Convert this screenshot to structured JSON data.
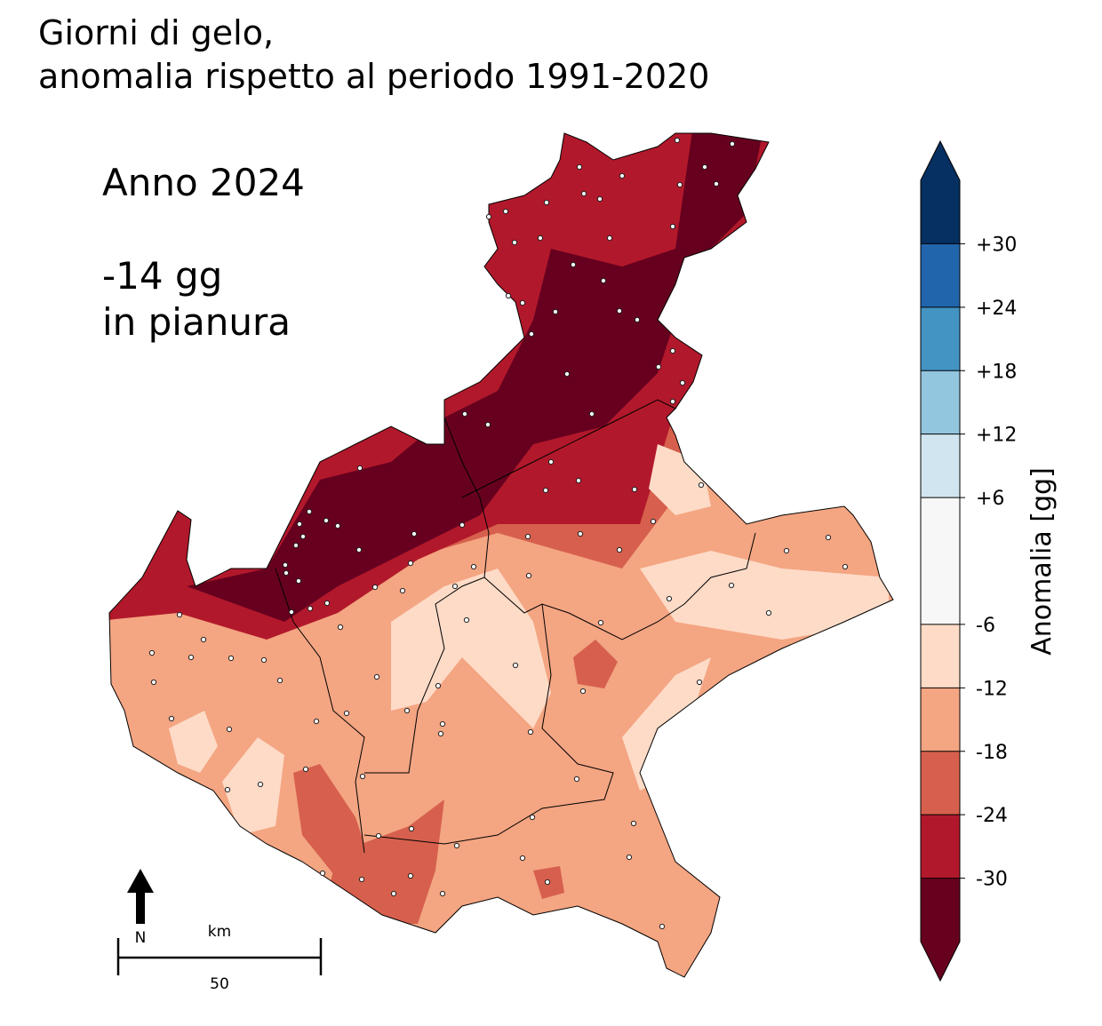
{
  "title": [
    "Giorni di gelo,",
    "anomalia rispetto al periodo 1991-2020"
  ],
  "annotation": {
    "year": "Anno 2024",
    "value": "-14 gg",
    "area": "in pianura"
  },
  "colorbar": {
    "label": "Anomalia [gg]",
    "lim": [
      -36,
      36
    ],
    "ticks": [
      -30,
      -24,
      -18,
      -12,
      -6,
      {
        "value": 6,
        "label": "+6"
      },
      {
        "value": 12,
        "label": "+12"
      },
      {
        "value": 18,
        "label": "+18"
      },
      {
        "value": 24,
        "label": "+24"
      },
      {
        "value": 30,
        "label": "+30"
      }
    ],
    "colors": [
      "#67001f",
      "#b2182b",
      "#d6604d",
      "#f4a582",
      "#fddbc7",
      "#f7f7f7",
      "#d1e5f0",
      "#92c5de",
      "#4393c3",
      "#2166ac",
      "#053061"
    ]
  },
  "north": "N",
  "scale_bar": {
    "unit": "km",
    "length": 50
  }
}
